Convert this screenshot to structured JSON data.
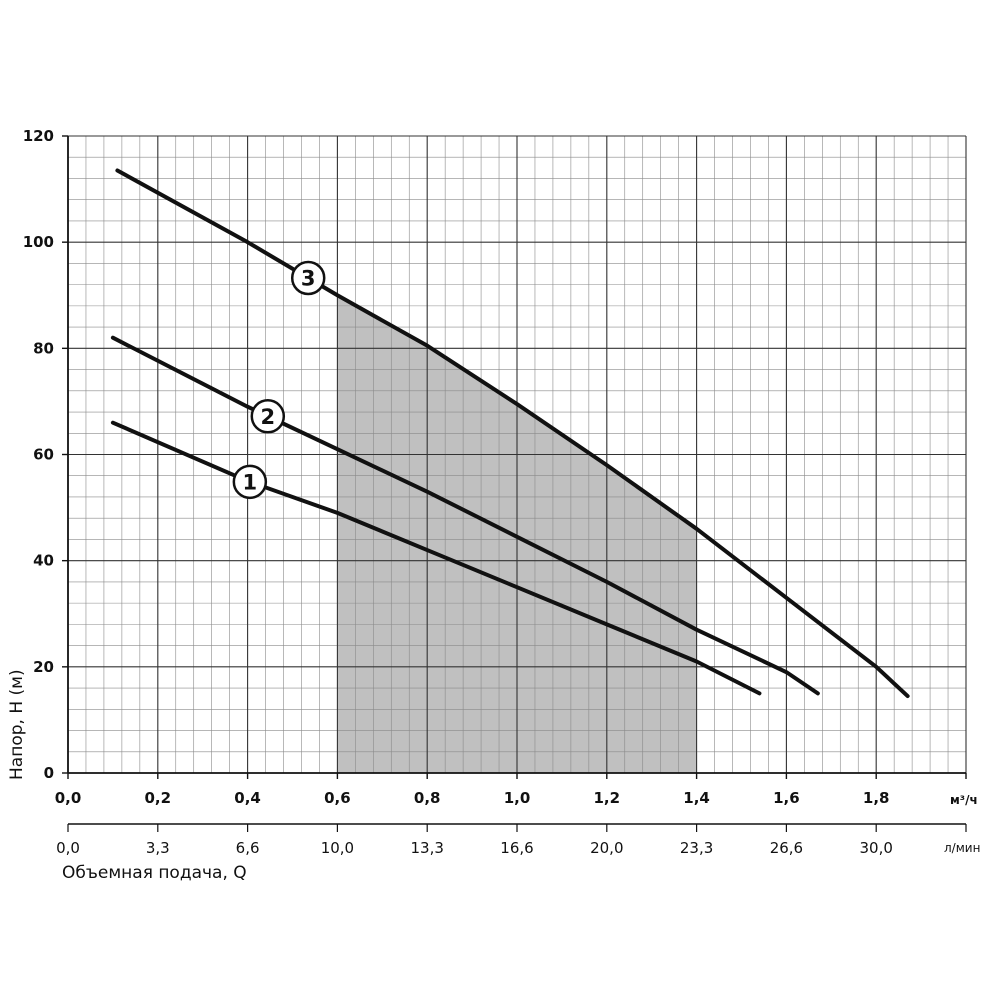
{
  "chart_data": {
    "type": "line",
    "title": "",
    "xlabel": "Объемная подача, Q",
    "ylabel": "Напор, Н (м)",
    "x_unit_primary": "м³/ч",
    "x_unit_secondary": "л/мин",
    "xlim": [
      0,
      2.0
    ],
    "ylim": [
      0,
      120
    ],
    "x_ticks_primary": [
      "0,0",
      "0,2",
      "0,4",
      "0,6",
      "0,8",
      "1,0",
      "1,2",
      "1,4",
      "1,6",
      "1,8"
    ],
    "x_ticks_primary_values": [
      0,
      0.2,
      0.4,
      0.6,
      0.8,
      1.0,
      1.2,
      1.4,
      1.6,
      1.8
    ],
    "x_ticks_secondary": [
      "0,0",
      "3,3",
      "6,6",
      "10,0",
      "13,3",
      "16,6",
      "20,0",
      "23,3",
      "26,6",
      "30,0"
    ],
    "y_ticks": [
      "0",
      "20",
      "40",
      "60",
      "80",
      "100",
      "120"
    ],
    "y_ticks_values": [
      0,
      20,
      40,
      60,
      80,
      100,
      120
    ],
    "grid": true,
    "shaded_region": {
      "x": [
        0.6,
        1.4
      ]
    },
    "series": [
      {
        "name": "1",
        "x": [
          0.1,
          0.4,
          0.6,
          0.8,
          1.0,
          1.2,
          1.4,
          1.54
        ],
        "y": [
          66,
          55,
          49,
          42,
          35,
          28,
          21,
          15
        ]
      },
      {
        "name": "2",
        "x": [
          0.1,
          0.4,
          0.6,
          0.8,
          1.0,
          1.2,
          1.4,
          1.6,
          1.67
        ],
        "y": [
          82,
          69,
          61,
          53,
          44.5,
          36,
          27,
          19,
          15
        ]
      },
      {
        "name": "3",
        "x": [
          0.11,
          0.4,
          0.6,
          0.8,
          1.0,
          1.2,
          1.4,
          1.6,
          1.8,
          1.87
        ],
        "y": [
          113.5,
          100,
          90,
          80.5,
          69.5,
          58,
          46,
          33,
          20,
          14.5
        ]
      }
    ]
  }
}
